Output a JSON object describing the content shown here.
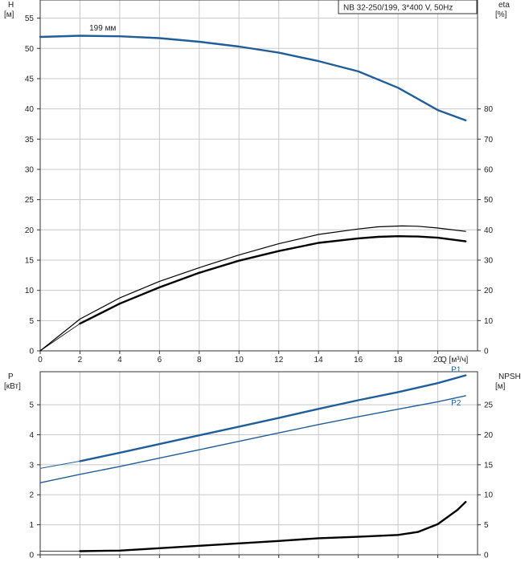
{
  "title_box": "NB 32-250/199, 3*400 V, 50Hz",
  "colors": {
    "blue": "#1f5e99",
    "blue_light": "#2f6fae",
    "black": "#000000",
    "grid": "#c8c8c8"
  },
  "chart_data": [
    {
      "type": "line",
      "name": "pump-curves-top",
      "left_axis_label": [
        "H",
        "[м]"
      ],
      "right_axis_label": [
        "eta",
        "[%]"
      ],
      "xlabel": "Q [м³/ч]",
      "xlim": [
        0,
        22
      ],
      "x_ticks": [
        0,
        2,
        4,
        6,
        8,
        10,
        12,
        14,
        16,
        18,
        20
      ],
      "ylim": [
        0,
        58
      ],
      "y_ticks": [
        0,
        5,
        10,
        15,
        20,
        25,
        30,
        35,
        40,
        45,
        50,
        55
      ],
      "y2lim": [
        0,
        116
      ],
      "y2_ticks": [
        0,
        10,
        20,
        30,
        40,
        50,
        60,
        70,
        80
      ],
      "annotations": [
        {
          "text": "199 мм",
          "x": 3.2,
          "y": 52.4
        }
      ],
      "series": [
        {
          "axis": "left",
          "style": "blue",
          "width": 2.4,
          "points": [
            [
              0,
              51.9
            ],
            [
              2,
              52.1
            ],
            [
              4,
              52.0
            ],
            [
              6,
              51.7
            ],
            [
              8,
              51.1
            ],
            [
              10,
              50.3
            ],
            [
              12,
              49.3
            ],
            [
              14,
              47.9
            ],
            [
              16,
              46.2
            ],
            [
              18,
              43.5
            ],
            [
              20,
              39.8
            ],
            [
              21.4,
              38.1
            ]
          ]
        },
        {
          "axis": "left",
          "style": "blue",
          "width": 1,
          "points": [
            [
              0,
              51.9
            ],
            [
              2,
              52.1
            ]
          ]
        },
        {
          "axis": "right",
          "style": "black",
          "width": 1.2,
          "points": [
            [
              0,
              0
            ],
            [
              2,
              10.5
            ],
            [
              4,
              17.5
            ],
            [
              6,
              23
            ],
            [
              8,
              27.5
            ],
            [
              10,
              31.7
            ],
            [
              12,
              35.4
            ],
            [
              14,
              38.5
            ],
            [
              16,
              40.3
            ],
            [
              17,
              41
            ],
            [
              18.2,
              41.3
            ],
            [
              19,
              41.2
            ],
            [
              20,
              40.6
            ],
            [
              21.4,
              39.5
            ]
          ]
        },
        {
          "axis": "right",
          "style": "black",
          "width": 2.4,
          "points": [
            [
              2,
              9
            ],
            [
              4,
              15.6
            ],
            [
              6,
              21
            ],
            [
              8,
              25.8
            ],
            [
              10,
              29.8
            ],
            [
              12,
              33
            ],
            [
              14,
              35.7
            ],
            [
              16,
              37.2
            ],
            [
              17,
              37.7
            ],
            [
              18,
              37.9
            ],
            [
              19,
              37.8
            ],
            [
              20,
              37.4
            ],
            [
              21.4,
              36.2
            ]
          ]
        },
        {
          "axis": "right",
          "style": "black",
          "width": 0.8,
          "points": [
            [
              0,
              0
            ],
            [
              1,
              4.5
            ],
            [
              2,
              9
            ]
          ]
        }
      ]
    },
    {
      "type": "line",
      "name": "pump-curves-bottom",
      "left_axis_label": [
        "P",
        "[кВт]"
      ],
      "right_axis_label": [
        "NPSH",
        "[м]"
      ],
      "xlim": [
        0,
        22
      ],
      "x_ticks": [
        0,
        2,
        4,
        6,
        8,
        10,
        12,
        14,
        16,
        18,
        20
      ],
      "ylim": [
        0,
        6.1
      ],
      "y_ticks": [
        0,
        1,
        2,
        3,
        4,
        5
      ],
      "y2lim": [
        0,
        30.5
      ],
      "y2_ticks": [
        0,
        5,
        10,
        15,
        20,
        25
      ],
      "series": [
        {
          "name": "P1",
          "axis": "left",
          "style": "blue",
          "width": 2.4,
          "points": [
            [
              2,
              3.12
            ],
            [
              4,
              3.4
            ],
            [
              6,
              3.69
            ],
            [
              8,
              3.98
            ],
            [
              10,
              4.27
            ],
            [
              12,
              4.56
            ],
            [
              14,
              4.86
            ],
            [
              16,
              5.15
            ],
            [
              18,
              5.42
            ],
            [
              20,
              5.72
            ],
            [
              21.4,
              5.98
            ]
          ]
        },
        {
          "name": "",
          "axis": "left",
          "style": "blue",
          "width": 1,
          "points": [
            [
              0,
              2.88
            ],
            [
              2,
              3.12
            ]
          ]
        },
        {
          "name": "P2",
          "axis": "left",
          "style": "blue",
          "width": 1.4,
          "points": [
            [
              0,
              2.4
            ],
            [
              2,
              2.68
            ],
            [
              4,
              2.94
            ],
            [
              6,
              3.22
            ],
            [
              8,
              3.5
            ],
            [
              10,
              3.78
            ],
            [
              12,
              4.06
            ],
            [
              14,
              4.34
            ],
            [
              16,
              4.6
            ],
            [
              18,
              4.85
            ],
            [
              20,
              5.1
            ],
            [
              21.4,
              5.3
            ]
          ]
        },
        {
          "axis": "right",
          "style": "black",
          "width": 2.4,
          "points": [
            [
              2,
              0.6
            ],
            [
              4,
              0.7
            ],
            [
              6,
              1.1
            ],
            [
              8,
              1.5
            ],
            [
              10,
              1.9
            ],
            [
              12,
              2.3
            ],
            [
              14,
              2.75
            ],
            [
              16,
              3.0
            ],
            [
              18,
              3.3
            ],
            [
              19,
              3.8
            ],
            [
              20,
              5.1
            ],
            [
              21,
              7.5
            ],
            [
              21.4,
              8.8
            ]
          ]
        },
        {
          "axis": "right",
          "style": "black",
          "width": 0.8,
          "points": [
            [
              0,
              0.6
            ],
            [
              2,
              0.6
            ]
          ]
        }
      ]
    }
  ]
}
